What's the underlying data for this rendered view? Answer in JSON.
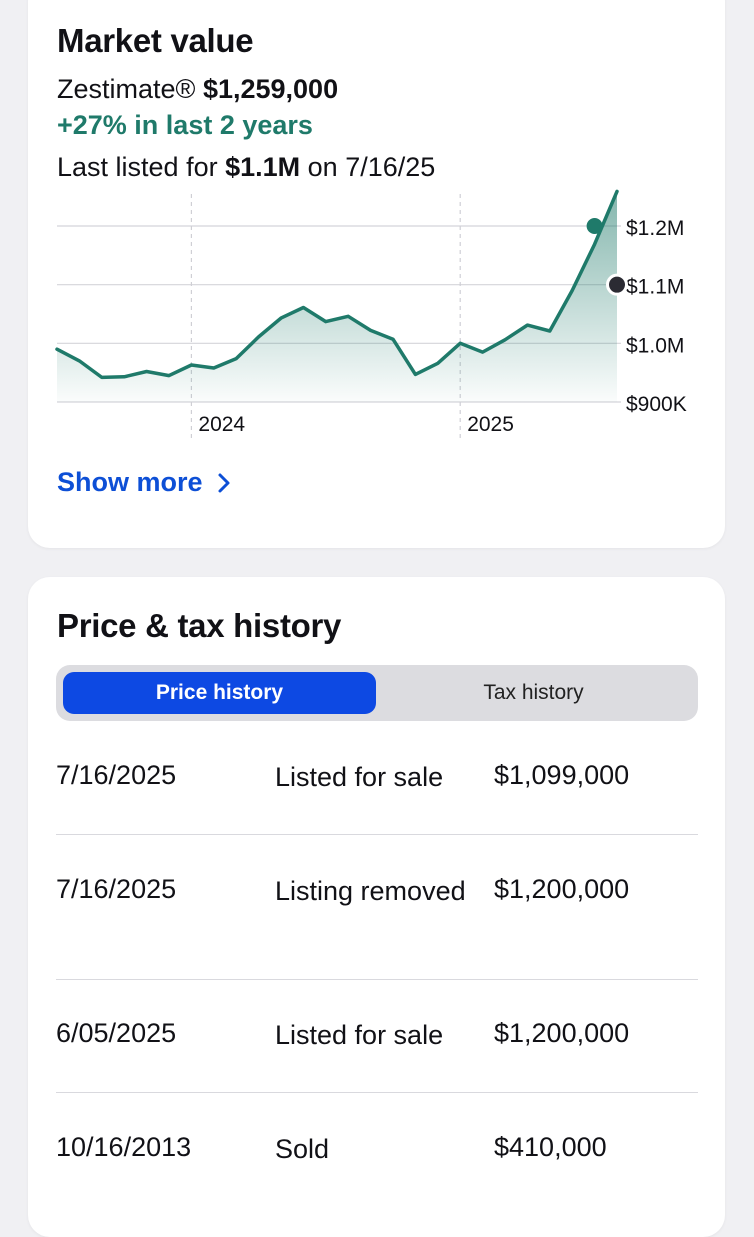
{
  "market": {
    "title": "Market value",
    "zestimate_label": "Zestimate®",
    "zestimate_value": "$1,259,000",
    "change": "+27% in last 2 years",
    "last_listed_prefix": "Last listed for",
    "last_listed_price": "$1.1M",
    "last_listed_suffix": "on 7/16/25",
    "show_more": "Show more"
  },
  "colors": {
    "accent_green": "#1f7a6a",
    "link_blue": "#0d4fd6",
    "segment_active": "#0d49e3"
  },
  "chart_data": {
    "type": "area",
    "x": [
      "2023-07",
      "2023-08",
      "2023-09",
      "2023-10",
      "2023-11",
      "2023-12",
      "2024-01",
      "2024-02",
      "2024-03",
      "2024-04",
      "2024-05",
      "2024-06",
      "2024-07",
      "2024-08",
      "2024-09",
      "2024-10",
      "2024-11",
      "2024-12",
      "2025-01",
      "2025-02",
      "2025-03",
      "2025-04",
      "2025-05",
      "2025-06",
      "2025-07",
      "2025-08"
    ],
    "series": [
      {
        "values": [
          990000,
          970000,
          942000,
          943000,
          952000,
          945000,
          963000,
          958000,
          974000,
          1011000,
          1043000,
          1061000,
          1037000,
          1046000,
          1022000,
          1007000,
          947000,
          966000,
          1000000,
          985000,
          1006000,
          1031000,
          1021000,
          1090000,
          1169000,
          1259000
        ]
      }
    ],
    "x_ticks": [
      "2024",
      "2025"
    ],
    "y_ticks": [
      "$900K",
      "$1.0M",
      "$1.1M",
      "$1.2M"
    ],
    "ylim": [
      900000,
      1200000
    ],
    "markers": [
      {
        "label": "Zestimate",
        "x": "2025-07",
        "value": 1200000
      },
      {
        "label": "Last listed",
        "x": "2025-08",
        "value": 1100000
      }
    ],
    "grid": true
  },
  "history": {
    "title": "Price & tax history",
    "tabs": [
      "Price history",
      "Tax history"
    ],
    "rows": [
      {
        "date": "7/16/2025",
        "event": "Listed for sale",
        "price": "$1,099,000"
      },
      {
        "date": "7/16/2025",
        "event": "Listing removed",
        "price": "$1,200,000"
      },
      {
        "date": "6/05/2025",
        "event": "Listed for sale",
        "price": "$1,200,000"
      },
      {
        "date": "10/16/2013",
        "event": "Sold",
        "price": "$410,000"
      }
    ]
  }
}
